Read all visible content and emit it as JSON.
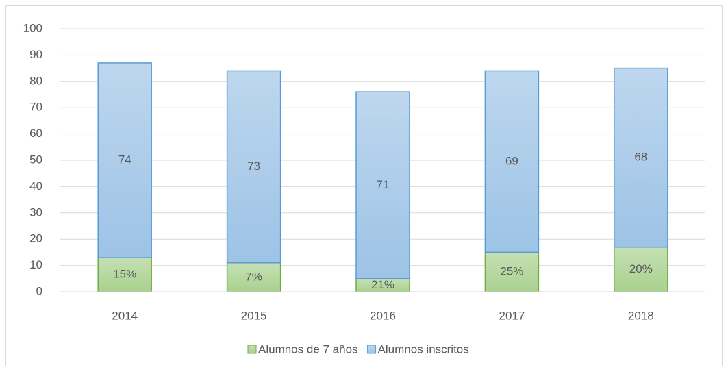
{
  "chart_data": {
    "type": "stacked_bar",
    "categories": [
      "2014",
      "2015",
      "2016",
      "2017",
      "2018"
    ],
    "series": [
      {
        "name": "Alumnos de 7 años",
        "color": "#a9d18e",
        "border": "#70ad47",
        "values": [
          13,
          11,
          5,
          15,
          17
        ],
        "labels": [
          "15%",
          "7%",
          "21%",
          "25%",
          "20%"
        ]
      },
      {
        "name": "Alumnos inscritos",
        "color": "#9dc3e6",
        "border": "#5b9bd5",
        "values": [
          74,
          73,
          71,
          69,
          68
        ]
      }
    ],
    "ylim": [
      0,
      100
    ],
    "yticks": [
      0,
      10,
      20,
      30,
      40,
      50,
      60,
      70,
      80,
      90,
      100
    ],
    "grid": true,
    "legend": "bottom"
  }
}
